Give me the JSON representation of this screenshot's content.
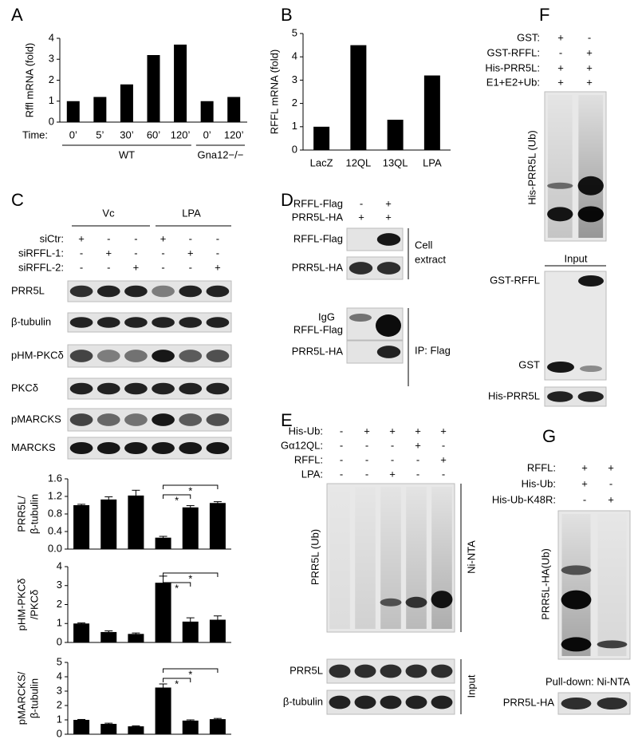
{
  "panel_labels": [
    "A",
    "B",
    "C",
    "D",
    "E",
    "F",
    "G"
  ],
  "chart_data": [
    {
      "type": "bar",
      "ylabel": "Rffl mRNA (fold)",
      "xlabel": "Time:",
      "categories": [
        "0’",
        "5’",
        "30’",
        "60’",
        "120’",
        "0’",
        "120’"
      ],
      "values": [
        1,
        1.2,
        1.8,
        3.2,
        3.7,
        1,
        1.2
      ],
      "groups": [
        "WT",
        "Gna12−/−"
      ],
      "color": "#000000",
      "ylim": [
        0,
        4
      ],
      "yticks": [
        0,
        1,
        2,
        3,
        4
      ]
    },
    {
      "type": "bar",
      "ylabel": "RFFL mRNA (fold)",
      "categories": [
        "LacZ",
        "12QL",
        "13QL",
        "LPA"
      ],
      "values": [
        1,
        4.5,
        1.3,
        3.2
      ],
      "color": "#000000",
      "ylim": [
        0,
        5
      ],
      "yticks": [
        0,
        1,
        2,
        3,
        4,
        5
      ]
    },
    {
      "type": "bar",
      "ylabel": [
        "PRR5L/",
        "β-tubulin"
      ],
      "values": [
        1.0,
        1.13,
        1.22,
        0.26,
        0.95,
        1.05
      ],
      "errors": [
        0.02,
        0.06,
        0.12,
        0.03,
        0.04,
        0.03
      ],
      "annotations": [
        "*",
        "*"
      ],
      "color": "#000000",
      "ylim": [
        0,
        1.6
      ],
      "yticks": [
        {
          "value": 0,
          "label": "0.0"
        },
        {
          "value": 0.4,
          "label": "0.4"
        },
        {
          "value": 0.8,
          "label": "0.8"
        },
        {
          "value": 1.2,
          "label": "1.2"
        },
        {
          "value": 1.6,
          "label": "1.6"
        }
      ]
    },
    {
      "type": "bar",
      "ylabel": [
        "pHM-PKCδ",
        "/PKCδ"
      ],
      "values": [
        1,
        0.55,
        0.45,
        3.15,
        1.1,
        1.2
      ],
      "errors": [
        0.03,
        0.06,
        0.05,
        0.35,
        0.2,
        0.2
      ],
      "annotations": [
        "*",
        "*"
      ],
      "color": "#000000",
      "ylim": [
        0,
        4
      ],
      "yticks": [
        0,
        1,
        2,
        3,
        4
      ]
    },
    {
      "type": "bar",
      "ylabel": [
        "pMARCKS/",
        "β-tubulin"
      ],
      "values": [
        1,
        0.72,
        0.55,
        3.25,
        0.95,
        1.05
      ],
      "errors": [
        0.03,
        0.05,
        0.03,
        0.25,
        0.05,
        0.05
      ],
      "annotations": [
        "*",
        "*"
      ],
      "color": "#000000",
      "ylim": [
        0,
        5
      ],
      "yticks": [
        0,
        1,
        2,
        3,
        4,
        5
      ]
    }
  ],
  "c_panel": {
    "header": [
      "Vc",
      "LPA"
    ],
    "rows": [
      {
        "label": "siCtr:",
        "signs": [
          "+",
          "-",
          "-",
          "+",
          "-",
          "-"
        ]
      },
      {
        "label": "siRFFL-1:",
        "signs": [
          "-",
          "+",
          "-",
          "-",
          "+",
          "-"
        ]
      },
      {
        "label": "siRFFL-2:",
        "signs": [
          "-",
          "-",
          "+",
          "-",
          "-",
          "+"
        ]
      }
    ],
    "blots": [
      "PRR5L",
      "β-tubulin",
      "pHM-PKCδ",
      "PKCδ",
      "pMARCKS",
      "MARCKS"
    ]
  },
  "d_panel": {
    "rows": [
      {
        "label": "RFFL-Flag",
        "signs": [
          "-",
          "+"
        ]
      },
      {
        "label": "PRR5L-HA",
        "signs": [
          "+",
          "+"
        ]
      }
    ],
    "blots": [
      "RFFL-Flag",
      "PRR5L-HA",
      "IgG",
      "RFFL-Flag",
      "PRR5L-HA"
    ],
    "sides": [
      "Cell",
      "extract",
      "IP: Flag"
    ]
  },
  "e_panel": {
    "rows": [
      {
        "label": "His-Ub:",
        "signs": [
          "-",
          "+",
          "+",
          "+",
          "+"
        ]
      },
      {
        "label": "Gα12QL:",
        "signs": [
          "-",
          "-",
          "-",
          "+",
          "-"
        ]
      },
      {
        "label": "RFFL:",
        "signs": [
          "-",
          "-",
          "-",
          "-",
          "+"
        ]
      },
      {
        "label": "LPA:",
        "signs": [
          "-",
          "-",
          "+",
          "-",
          "-"
        ]
      }
    ],
    "ub_label": "PRR5L (Ub)",
    "blots": [
      "PRR5L",
      "β-tubulin"
    ],
    "sides": [
      "Ni-NTA",
      "Input"
    ]
  },
  "f_panel": {
    "rows": [
      {
        "label": "GST:",
        "signs": [
          "+",
          "-"
        ]
      },
      {
        "label": "GST-RFFL:",
        "signs": [
          "-",
          "+"
        ]
      },
      {
        "label": "His-PRR5L:",
        "signs": [
          "+",
          "+"
        ]
      },
      {
        "label": "E1+E2+Ub:",
        "signs": [
          "+",
          "+"
        ]
      }
    ],
    "ub_label": "His-PRR5L (Ub)",
    "input": "Input",
    "blots": [
      "GST-RFFL",
      "GST",
      "His-PRR5L"
    ]
  },
  "g_panel": {
    "rows": [
      {
        "label": "RFFL:",
        "signs": [
          "+",
          "+"
        ]
      },
      {
        "label": "His-Ub:",
        "signs": [
          "+",
          "-"
        ]
      },
      {
        "label": "His-Ub-K48R:",
        "signs": [
          "-",
          "+"
        ]
      }
    ],
    "ub_label": "PRR5L-HA(Ub)",
    "pulldown": "Pull-down: Ni-NTA",
    "blots": [
      "PRR5L-HA"
    ]
  }
}
